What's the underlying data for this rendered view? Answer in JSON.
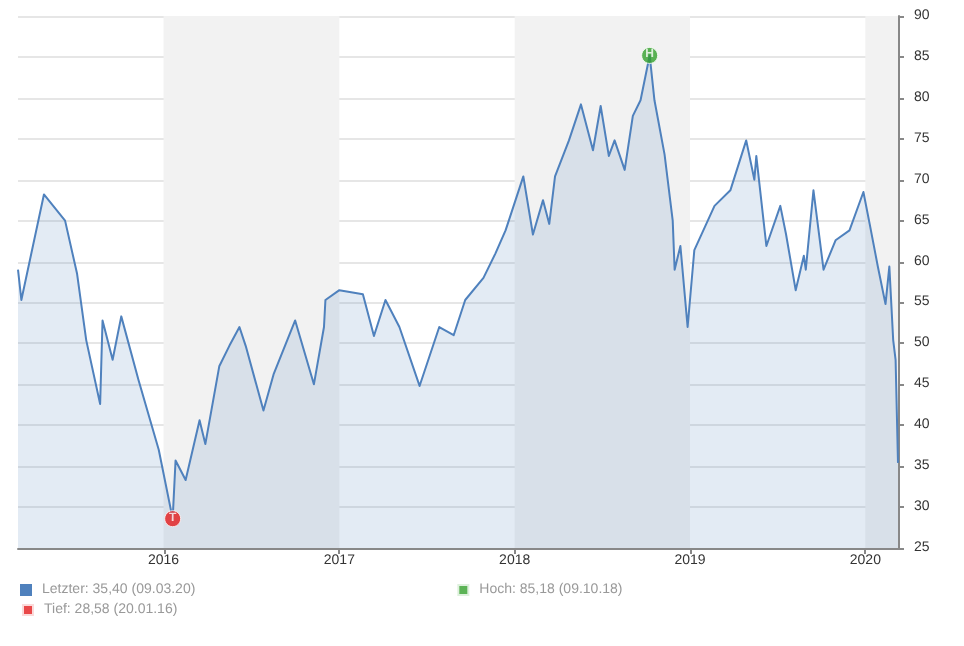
{
  "chart_data": {
    "type": "area",
    "xlim": [
      "2015-03-04",
      "2020-03-09"
    ],
    "xticks": [
      "2016",
      "2017",
      "2018",
      "2019",
      "2020"
    ],
    "ylim": [
      25,
      90
    ],
    "yticks": [
      25,
      30,
      35,
      40,
      45,
      50,
      55,
      60,
      65,
      70,
      75,
      80,
      85,
      90
    ],
    "grid": "y",
    "legend": "bottom left",
    "bands": [
      {
        "axis": "x",
        "from": "2016",
        "to": "2017",
        "color": "#f2f2f2"
      },
      {
        "axis": "x",
        "from": "2018",
        "to": "2019",
        "color": "#f2f2f2"
      },
      {
        "axis": "x",
        "from": "2020",
        "to": "2020-03-09",
        "color": "#f2f2f2"
      }
    ],
    "series": [
      {
        "name": "Letzter: 35,40 (09.03.20)",
        "color": "#4f81bd",
        "marker": "none",
        "x": [
          "2015-03-04",
          "2015-03-11",
          "2015-04-27",
          "2015-06-10",
          "2015-07-05",
          "2015-07-24",
          "2015-08-22",
          "2015-08-27",
          "2015-09-17",
          "2015-10-05",
          "2015-11-10",
          "2015-12-22",
          "2016-01-20",
          "2016-01-26",
          "2016-02-16",
          "2016-03-16",
          "2016-03-28",
          "2016-04-26",
          "2016-05-17",
          "2016-06-07",
          "2016-06-20",
          "2016-07-27",
          "2016-08-17",
          "2016-10-01",
          "2016-11-09",
          "2016-11-30",
          "2016-12-03",
          "2017-01-01",
          "2017-02-19",
          "2017-03-14",
          "2017-04-07",
          "2017-05-06",
          "2017-06-17",
          "2017-07-28",
          "2017-08-27",
          "2017-09-20",
          "2017-10-28",
          "2017-11-22",
          "2017-12-13",
          "2018-01-19",
          "2018-02-08",
          "2018-03-01",
          "2018-03-14",
          "2018-03-26",
          "2018-04-24",
          "2018-05-19",
          "2018-06-13",
          "2018-06-29",
          "2018-07-16",
          "2018-07-28",
          "2018-08-18",
          "2018-09-04",
          "2018-09-20",
          "2018-10-09",
          "2018-10-19",
          "2018-11-09",
          "2018-11-26",
          "2018-11-30",
          "2018-12-12",
          "2018-12-27",
          "2019-01-10",
          "2019-02-21",
          "2019-03-26",
          "2019-04-28",
          "2019-05-15",
          "2019-05-19",
          "2019-06-09",
          "2019-07-08",
          "2019-07-20",
          "2019-08-09",
          "2019-08-26",
          "2019-08-30",
          "2019-09-15",
          "2019-10-06",
          "2019-10-31",
          "2019-11-29",
          "2019-12-28",
          "2020-01-10",
          "2020-01-27",
          "2020-02-12",
          "2020-02-20",
          "2020-02-28",
          "2020-03-04",
          "2020-03-09"
        ],
        "values": [
          59,
          55.3,
          68.2,
          65,
          58.5,
          50.4,
          42.6,
          52.8,
          48,
          53.3,
          45.5,
          37,
          28.58,
          35.7,
          33.3,
          40.6,
          37.7,
          47.2,
          49.7,
          52,
          49.7,
          41.8,
          46.2,
          52.8,
          45,
          52,
          55.3,
          56.5,
          56,
          50.9,
          55.3,
          52,
          44.8,
          52,
          51,
          55.3,
          58,
          61,
          63.8,
          70.4,
          63.3,
          67.5,
          64.6,
          70.4,
          74.8,
          79.2,
          73.6,
          79,
          72.9,
          74.8,
          71.2,
          77.8,
          79.7,
          85.18,
          79.7,
          73.1,
          65,
          59,
          61.9,
          52,
          61.4,
          66.8,
          68.7,
          74.8,
          70,
          72.9,
          61.9,
          66.8,
          63.3,
          56.5,
          60.7,
          59,
          68.7,
          59,
          62.6,
          63.8,
          68.5,
          64.6,
          59.4,
          54.8,
          59.4,
          50.4,
          48,
          35.4
        ]
      },
      {
        "name": "Hoch: 85,18 (09.10.18)",
        "type": "scatter",
        "marker": "circle",
        "color": "#33a02c",
        "x": [
          "2018-10-09"
        ],
        "values": [
          85.18
        ],
        "value_labels": [
          "H"
        ]
      },
      {
        "name": "Tief: 28,58 (20.01.16)",
        "type": "scatter",
        "marker": "circle",
        "color": "#e31a1c",
        "x": [
          "2016-01-20"
        ],
        "values": [
          28.58
        ],
        "value_labels": [
          "T"
        ]
      }
    ]
  }
}
